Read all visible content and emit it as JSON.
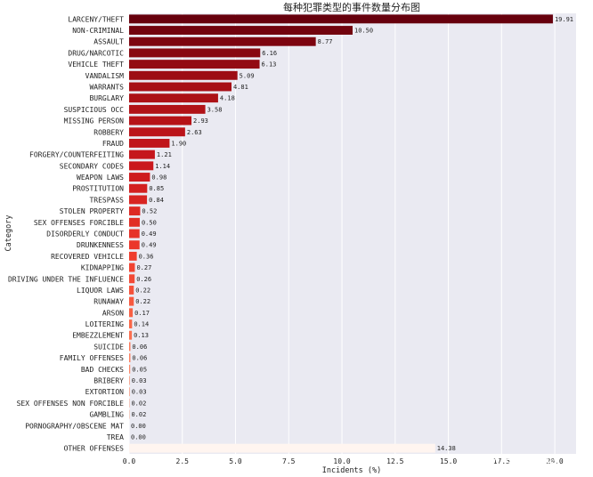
{
  "chart_data": {
    "type": "bar",
    "orientation": "horizontal",
    "title": "每种犯罪类型的事件数量分布图",
    "xlabel": "Incidents (%)",
    "ylabel": "Category",
    "xlim": [
      0,
      21.0
    ],
    "xticks": [
      "0.0",
      "2.5",
      "5.0",
      "7.5",
      "10.0",
      "12.5",
      "15.0",
      "17.5",
      "20.0"
    ],
    "grid": true,
    "categories": [
      "LARCENY/THEFT",
      "NON-CRIMINAL",
      "ASSAULT",
      "DRUG/NARCOTIC",
      "VEHICLE THEFT",
      "VANDALISM",
      "WARRANTS",
      "BURGLARY",
      "SUSPICIOUS OCC",
      "MISSING PERSON",
      "ROBBERY",
      "FRAUD",
      "FORGERY/COUNTERFEITING",
      "SECONDARY CODES",
      "WEAPON LAWS",
      "PROSTITUTION",
      "TRESPASS",
      "STOLEN PROPERTY",
      "SEX OFFENSES FORCIBLE",
      "DISORDERLY CONDUCT",
      "DRUNKENNESS",
      "RECOVERED VEHICLE",
      "KIDNAPPING",
      "DRIVING UNDER THE INFLUENCE",
      "LIQUOR LAWS",
      "RUNAWAY",
      "ARSON",
      "LOITERING",
      "EMBEZZLEMENT",
      "SUICIDE",
      "FAMILY OFFENSES",
      "BAD CHECKS",
      "BRIBERY",
      "EXTORTION",
      "SEX OFFENSES NON FORCIBLE",
      "GAMBLING",
      "PORNOGRAPHY/OBSCENE MAT",
      "TREA",
      "OTHER OFFENSES"
    ],
    "values": [
      19.91,
      10.5,
      8.77,
      6.16,
      6.13,
      5.09,
      4.81,
      4.18,
      3.58,
      2.93,
      2.63,
      1.9,
      1.21,
      1.14,
      0.98,
      0.85,
      0.84,
      0.52,
      0.5,
      0.49,
      0.49,
      0.36,
      0.27,
      0.26,
      0.22,
      0.22,
      0.17,
      0.14,
      0.13,
      0.06,
      0.06,
      0.05,
      0.03,
      0.03,
      0.02,
      0.02,
      0.0,
      0.0,
      14.38
    ],
    "value_labels": [
      "19.91",
      "10.50",
      "8.77",
      "6.16",
      "6.13",
      "5.09",
      "4.81",
      "4.18",
      "3.58",
      "2.93",
      "2.63",
      "1.90",
      "1.21",
      "1.14",
      "0.98",
      "0.85",
      "0.84",
      "0.52",
      "0.50",
      "0.49",
      "0.49",
      "0.36",
      "0.27",
      "0.26",
      "0.22",
      "0.22",
      "0.17",
      "0.14",
      "0.13",
      "0.06",
      "0.06",
      "0.05",
      "0.03",
      "0.03",
      "0.02",
      "0.02",
      "0.00",
      "0.00",
      "14.38"
    ],
    "palette": "Reds_r",
    "colors": {
      "dark": "#67000d",
      "light": "#fff5f0",
      "plot_background": "#eaeaf2",
      "grid": "#ffffff"
    }
  },
  "watermark": "CSDN @Together_CZ"
}
